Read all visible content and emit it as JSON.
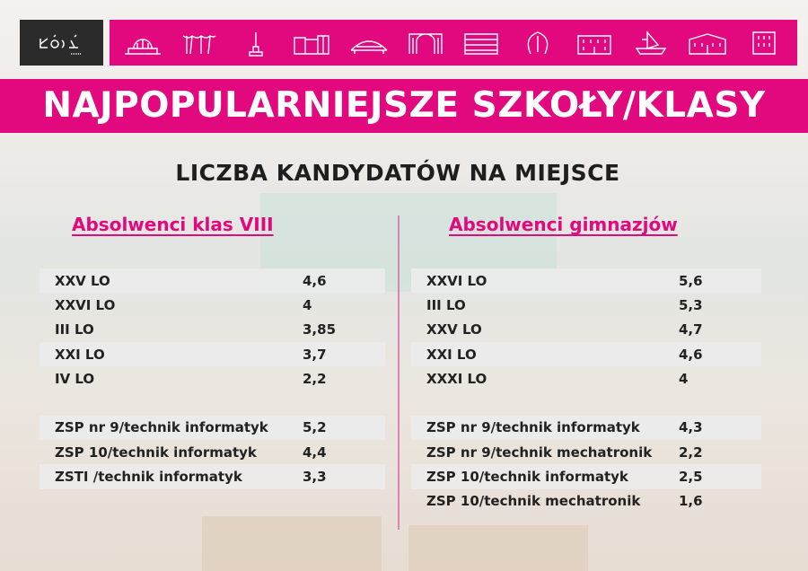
{
  "logo": {
    "text": "ŁÓDŹ"
  },
  "header": {
    "title": "NAJPOPULARNIEJSZE SZKOŁY/KLASY",
    "subtitle": "LICZBA KANDYDATÓW NA MIEJSCE"
  },
  "colors": {
    "accent": "#e2087d",
    "logo_bg": "#2b2b2b"
  },
  "icons": [
    "train-station-icon",
    "palm-house-icon",
    "monument-icon",
    "factory-icon",
    "arena-icon",
    "gate-icon",
    "building-icon",
    "shell-icon",
    "palace-icon",
    "ship-icon",
    "manor-icon",
    "tower-block-icon"
  ],
  "left": {
    "heading": "Absolwenci klas VIII",
    "rows": [
      {
        "name": "XXV LO",
        "value": "4,6"
      },
      {
        "name": "XXVI LO",
        "value": "4"
      },
      {
        "name": "III LO",
        "value": "3,85"
      },
      {
        "name": "XXI LO",
        "value": "3,7"
      },
      {
        "name": "IV LO",
        "value": "2,2"
      },
      {
        "name": "ZSP nr 9/technik informatyk",
        "value": "5,2"
      },
      {
        "name": "ZSP 10/technik informatyk",
        "value": "4,4"
      },
      {
        "name": "ZSTI /technik informatyk",
        "value": "3,3"
      }
    ]
  },
  "right": {
    "heading": "Absolwenci gimnazjów",
    "rows": [
      {
        "name": "XXVI LO",
        "value": "5,6"
      },
      {
        "name": "III LO",
        "value": "5,3"
      },
      {
        "name": "XXV LO",
        "value": "4,7"
      },
      {
        "name": "XXI LO",
        "value": "4,6"
      },
      {
        "name": "XXXI LO",
        "value": "4"
      },
      {
        "name": "ZSP nr 9/technik informatyk",
        "value": "4,3"
      },
      {
        "name": "ZSP nr 9/technik mechatronik",
        "value": "2,2"
      },
      {
        "name": "ZSP 10/technik informatyk",
        "value": "2,5"
      },
      {
        "name": "ZSP 10/technik mechatronik",
        "value": "1,6"
      }
    ]
  }
}
